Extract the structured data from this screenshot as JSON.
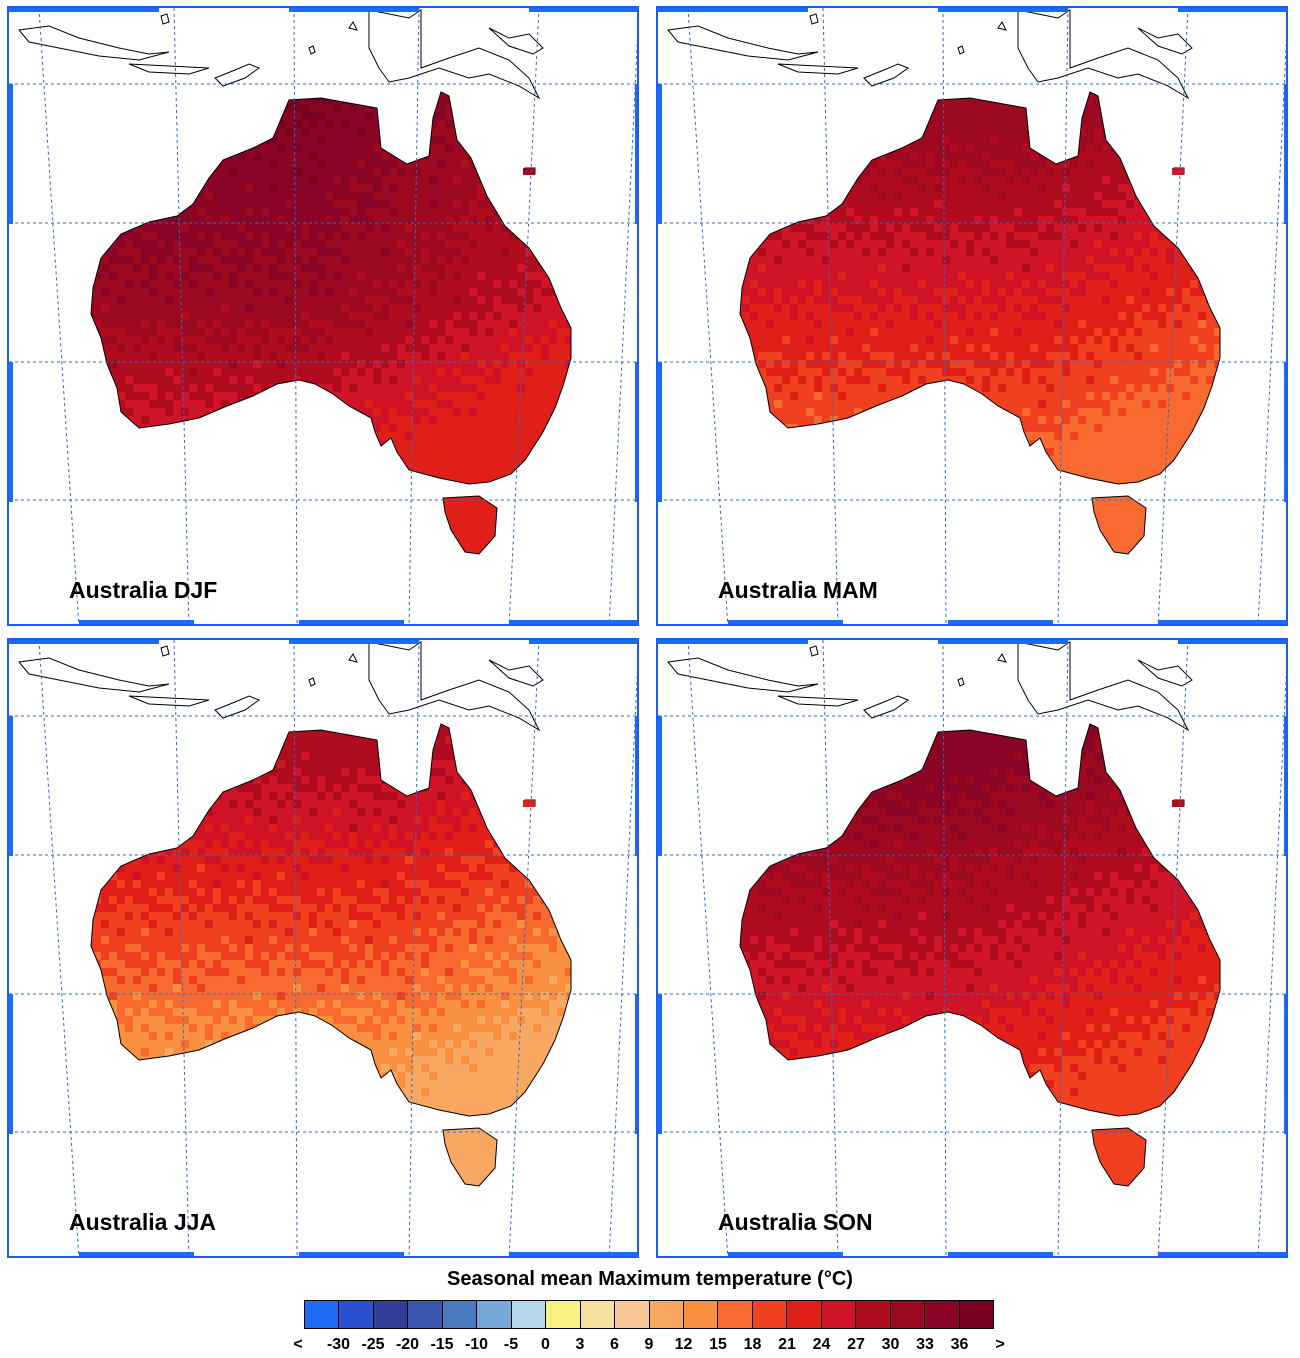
{
  "panels": [
    {
      "id": "djf",
      "title": "Australia DJF",
      "season": "DJF"
    },
    {
      "id": "mam",
      "title": "Australia MAM",
      "season": "MAM"
    },
    {
      "id": "jja",
      "title": "Australia JJA",
      "season": "JJA"
    },
    {
      "id": "son",
      "title": "Australia SON",
      "season": "SON"
    }
  ],
  "colorbar": {
    "title": "Seasonal mean Maximum temperature (°C)",
    "labels": [
      "<",
      "-30",
      "-25",
      "-20",
      "-15",
      "-10",
      "-5",
      "0",
      "3",
      "6",
      "9",
      "12",
      "15",
      "18",
      "21",
      "24",
      "27",
      "30",
      "33",
      "36",
      ">"
    ],
    "colors": [
      "#1c6cf5",
      "#2a4fd0",
      "#2f3d98",
      "#3a55b0",
      "#4a7ac0",
      "#78a8d8",
      "#b8d8ee",
      "#f8f080",
      "#f8e0a0",
      "#f8c898",
      "#f8a860",
      "#f89040",
      "#f86a30",
      "#f04020",
      "#e02018",
      "#d01428",
      "#b00c20",
      "#9c0820",
      "#8a0426",
      "#7a0020"
    ]
  },
  "season_palettes": {
    "djf": [
      "#7a0020",
      "#8a0426",
      "#9c0820",
      "#b00c20",
      "#d01428",
      "#e02018"
    ],
    "mam": [
      "#9c0820",
      "#b00c20",
      "#d01428",
      "#e02018",
      "#f04020",
      "#f86a30"
    ],
    "jja": [
      "#b00c20",
      "#d01428",
      "#e02018",
      "#f04020",
      "#f86a30",
      "#f89040",
      "#f8a860"
    ],
    "son": [
      "#8a0426",
      "#9c0820",
      "#b00c20",
      "#d01428",
      "#e02018",
      "#f04020"
    ]
  }
}
